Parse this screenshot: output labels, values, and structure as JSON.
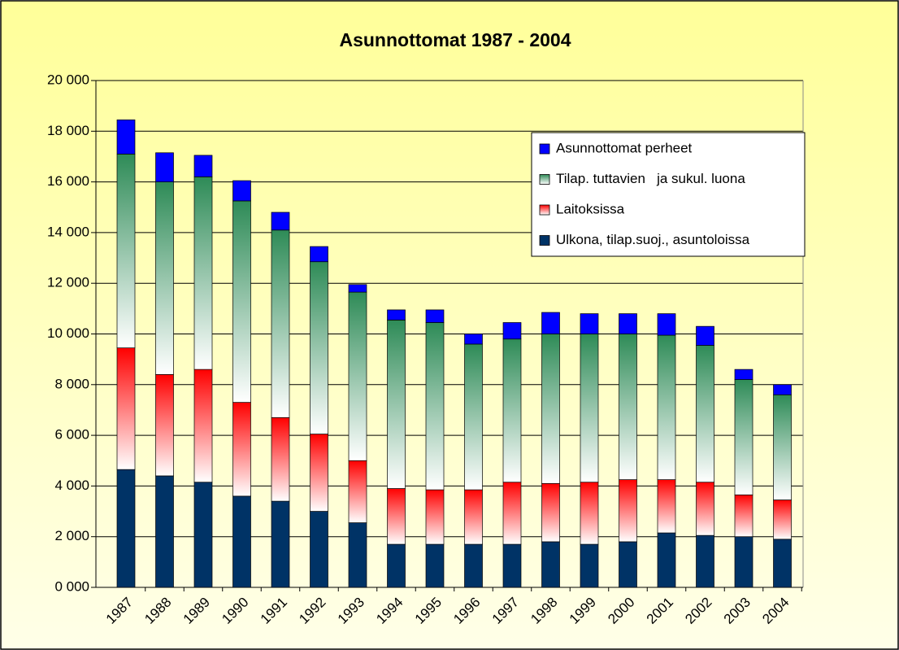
{
  "chart_data": {
    "type": "stacked-bar",
    "title": "Asunnottomat 1987 - 2004",
    "categories": [
      "1987",
      "1988",
      "1989",
      "1990",
      "1991",
      "1992",
      "1993",
      "1994",
      "1995",
      "1996",
      "1997",
      "1998",
      "1999",
      "2000",
      "2001",
      "2002",
      "2003",
      "2004"
    ],
    "series": [
      {
        "name": "Ulkona, tilap.suoj., asuntoloissa",
        "color": "#003366",
        "values": [
          4650,
          4400,
          4150,
          3600,
          3400,
          3000,
          2550,
          1700,
          1700,
          1700,
          1700,
          1800,
          1700,
          1800,
          2150,
          2050,
          2000,
          1900
        ]
      },
      {
        "name": "Laitoksissa",
        "color": "#ff0000",
        "values": [
          4800,
          4000,
          4450,
          3700,
          3300,
          3050,
          2450,
          2200,
          2150,
          2150,
          2450,
          2300,
          2450,
          2450,
          2100,
          2100,
          1650,
          1550
        ]
      },
      {
        "name": "Tilap. tuttavien   ja sukul. luona",
        "color": "#2e8b57",
        "values": [
          7650,
          7600,
          7600,
          7950,
          7400,
          6800,
          6650,
          6650,
          6600,
          5750,
          5650,
          5900,
          5850,
          5750,
          5700,
          5400,
          4550,
          4150
        ]
      },
      {
        "name": "Asunnottomat perheet",
        "color": "#0000ff",
        "values": [
          1350,
          1150,
          850,
          800,
          700,
          600,
          300,
          400,
          500,
          400,
          650,
          850,
          800,
          800,
          850,
          750,
          400,
          400
        ]
      }
    ],
    "ylim": [
      0,
      20000
    ],
    "yticks": [
      {
        "value": 0,
        "label": "0 000"
      },
      {
        "value": 2000,
        "label": "2 000"
      },
      {
        "value": 4000,
        "label": "4 000"
      },
      {
        "value": 6000,
        "label": "6 000"
      },
      {
        "value": 8000,
        "label": "8 000"
      },
      {
        "value": 10000,
        "label": "10 000"
      },
      {
        "value": 12000,
        "label": "12 000"
      },
      {
        "value": 14000,
        "label": "14 000"
      },
      {
        "value": 16000,
        "label": "16 000"
      },
      {
        "value": 18000,
        "label": "18 000"
      },
      {
        "value": 20000,
        "label": "20 000"
      }
    ],
    "grid": true,
    "legend": "upper-right"
  }
}
